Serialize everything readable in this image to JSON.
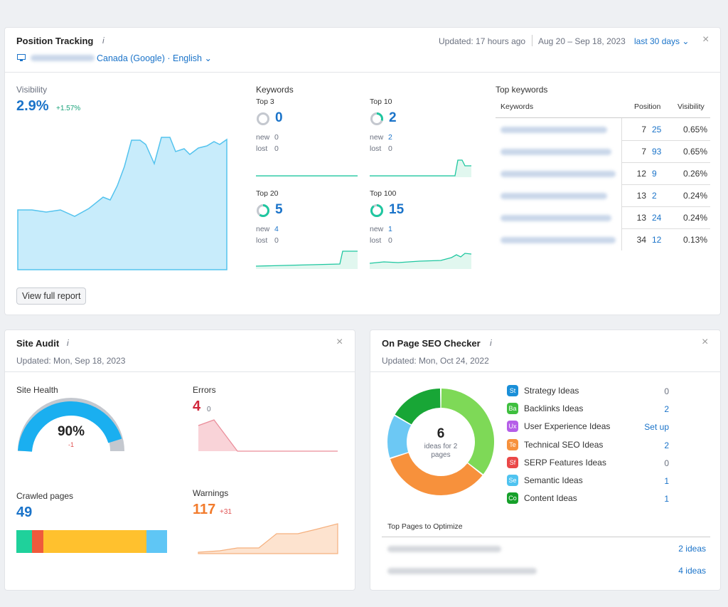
{
  "position_tracking": {
    "title": "Position Tracking",
    "project": "Canada (Google) · English",
    "updated": "Updated: 17 hours ago",
    "date_range": "Aug 20 – Sep 18, 2023",
    "period": "last 30 days",
    "visibility": {
      "label": "Visibility",
      "value": "2.9%",
      "change": "+1.57%"
    },
    "keywords": {
      "label": "Keywords",
      "new_label": "new",
      "lost_label": "lost",
      "groups": [
        {
          "name": "Top 3",
          "count": "0",
          "new": "0",
          "lost": "0"
        },
        {
          "name": "Top 10",
          "count": "2",
          "new": "2",
          "lost": "0"
        },
        {
          "name": "Top 20",
          "count": "5",
          "new": "4",
          "lost": "0"
        },
        {
          "name": "Top 100",
          "count": "15",
          "new": "1",
          "lost": "0"
        }
      ]
    },
    "top_keywords": {
      "label": "Top keywords",
      "columns": [
        "Keywords",
        "Position",
        "Visibility"
      ],
      "rows": [
        {
          "position": "7",
          "change": "25",
          "visibility": "0.65%"
        },
        {
          "position": "7",
          "change": "93",
          "visibility": "0.65%"
        },
        {
          "position": "12",
          "change": "9",
          "visibility": "0.26%"
        },
        {
          "position": "13",
          "change": "2",
          "visibility": "0.24%"
        },
        {
          "position": "13",
          "change": "24",
          "visibility": "0.24%"
        },
        {
          "position": "34",
          "change": "12",
          "visibility": "0.13%"
        }
      ]
    },
    "button": "View full report"
  },
  "site_audit": {
    "title": "Site Audit",
    "updated": "Updated: Mon, Sep 18, 2023",
    "site_health": {
      "label": "Site Health",
      "value": "90%",
      "change": "-1"
    },
    "errors": {
      "label": "Errors",
      "value": "4",
      "change": "0"
    },
    "crawled_pages": {
      "label": "Crawled pages",
      "value": "49"
    },
    "warnings": {
      "label": "Warnings",
      "value": "117",
      "change": "+31"
    }
  },
  "on_page_seo": {
    "title": "On Page SEO Checker",
    "updated": "Updated: Mon, Oct 24, 2022",
    "total": "6",
    "total_label": "ideas for 2 pages",
    "ideas": [
      {
        "icon": "St",
        "name": "Strategy Ideas",
        "value": "0"
      },
      {
        "icon": "Ba",
        "name": "Backlinks Ideas",
        "value": "2"
      },
      {
        "icon": "Ux",
        "name": "User Experience Ideas",
        "value": "Set up"
      },
      {
        "icon": "Te",
        "name": "Technical SEO Ideas",
        "value": "2"
      },
      {
        "icon": "Sf",
        "name": "SERP Features Ideas",
        "value": "0"
      },
      {
        "icon": "Se",
        "name": "Semantic Ideas",
        "value": "1"
      },
      {
        "icon": "Co",
        "name": "Content Ideas",
        "value": "1"
      }
    ],
    "top_pages_label": "Top Pages to Optimize",
    "top_pages": [
      "2 ideas",
      "4 ideas"
    ]
  }
}
